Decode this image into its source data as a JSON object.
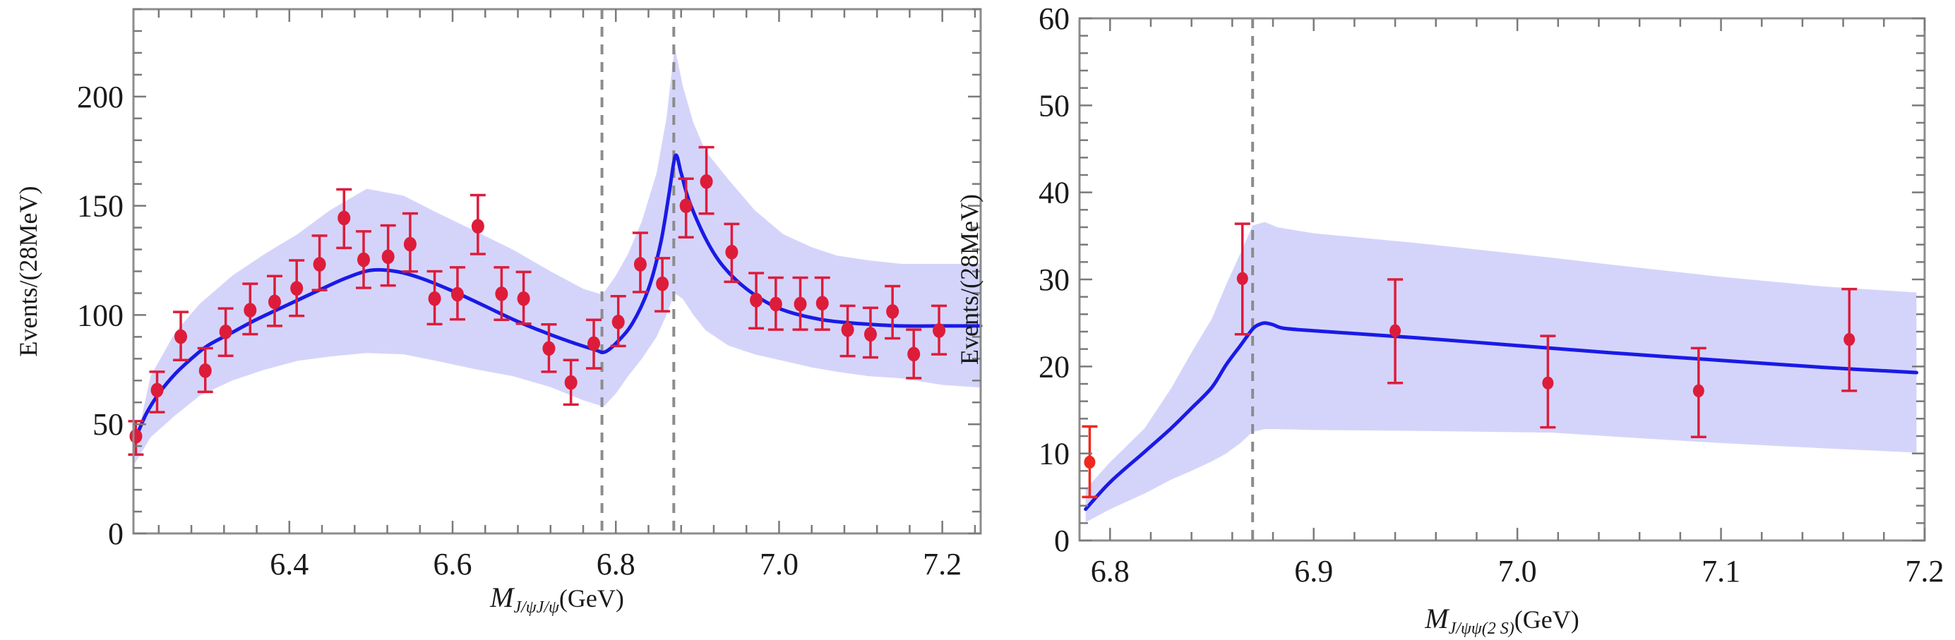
{
  "chart_data": [
    {
      "type": "scatter",
      "panel": "left",
      "title": "",
      "xlabel": {
        "main": "M",
        "sub": "J/ψJ/ψ",
        "unit": "(GeV)"
      },
      "ylabel": "Events/(28MeV)",
      "xlim": [
        6.209,
        7.247
      ],
      "ylim": [
        0,
        240
      ],
      "xticks": [
        6.4,
        6.6,
        6.8,
        7.0,
        7.2
      ],
      "xtick_labels": [
        "6.4",
        "6.6",
        "6.8",
        "7.0",
        "7.2"
      ],
      "xminor_step": 0.04,
      "yticks": [
        0,
        50,
        100,
        150,
        200
      ],
      "ytick_labels": [
        "0",
        "50",
        "100",
        "150",
        "200"
      ],
      "yminor_step": 10,
      "grid": false,
      "vlines": [
        6.783,
        6.871
      ],
      "colors": {
        "data": "#dd1c3a",
        "fit": "#1a1ae6",
        "band": "#d4d4fb",
        "vline": "#8c8c8c",
        "frame": "#8c8c8c"
      },
      "series": [
        {
          "name": "data",
          "kind": "errorbar",
          "points": [
            {
              "x": 6.212,
              "y": 44.5,
              "lo": 36.1,
              "hi": 51.4
            },
            {
              "x": 6.238,
              "y": 65.6,
              "lo": 55.5,
              "hi": 74.0
            },
            {
              "x": 6.267,
              "y": 90.1,
              "lo": 79.4,
              "hi": 101.4
            },
            {
              "x": 6.297,
              "y": 74.5,
              "lo": 64.8,
              "hi": 84.8
            },
            {
              "x": 6.322,
              "y": 92.3,
              "lo": 81.3,
              "hi": 103.0
            },
            {
              "x": 6.352,
              "y": 102.2,
              "lo": 91.2,
              "hi": 114.3
            },
            {
              "x": 6.382,
              "y": 106.0,
              "lo": 95.0,
              "hi": 117.8
            },
            {
              "x": 6.409,
              "y": 112.2,
              "lo": 99.6,
              "hi": 125.0
            },
            {
              "x": 6.437,
              "y": 123.2,
              "lo": 111.4,
              "hi": 136.3
            },
            {
              "x": 6.467,
              "y": 144.4,
              "lo": 130.7,
              "hi": 157.5
            },
            {
              "x": 6.491,
              "y": 125.3,
              "lo": 112.4,
              "hi": 138.3
            },
            {
              "x": 6.521,
              "y": 126.7,
              "lo": 113.5,
              "hi": 141.0
            },
            {
              "x": 6.548,
              "y": 132.4,
              "lo": 119.9,
              "hi": 146.5
            },
            {
              "x": 6.578,
              "y": 107.5,
              "lo": 95.8,
              "hi": 120.0
            },
            {
              "x": 6.606,
              "y": 109.5,
              "lo": 98.0,
              "hi": 121.8
            },
            {
              "x": 6.631,
              "y": 140.6,
              "lo": 127.9,
              "hi": 154.9
            },
            {
              "x": 6.66,
              "y": 109.7,
              "lo": 97.8,
              "hi": 121.8
            },
            {
              "x": 6.687,
              "y": 107.5,
              "lo": 96.0,
              "hi": 119.7
            },
            {
              "x": 6.718,
              "y": 84.7,
              "lo": 74.0,
              "hi": 95.7
            },
            {
              "x": 6.745,
              "y": 69.1,
              "lo": 59.0,
              "hi": 79.4
            },
            {
              "x": 6.773,
              "y": 86.9,
              "lo": 75.6,
              "hi": 97.8
            },
            {
              "x": 6.803,
              "y": 96.8,
              "lo": 85.8,
              "hi": 108.6
            },
            {
              "x": 6.83,
              "y": 123.2,
              "lo": 110.5,
              "hi": 137.6
            },
            {
              "x": 6.857,
              "y": 114.3,
              "lo": 101.7,
              "hi": 126.0
            },
            {
              "x": 6.886,
              "y": 150.0,
              "lo": 135.6,
              "hi": 162.4
            },
            {
              "x": 6.911,
              "y": 161.1,
              "lo": 146.4,
              "hi": 176.8
            },
            {
              "x": 6.942,
              "y": 128.8,
              "lo": 115.2,
              "hi": 141.7
            },
            {
              "x": 6.972,
              "y": 106.8,
              "lo": 93.9,
              "hi": 119.2
            },
            {
              "x": 6.996,
              "y": 105.0,
              "lo": 93.3,
              "hi": 117.1
            },
            {
              "x": 7.026,
              "y": 105.0,
              "lo": 93.3,
              "hi": 117.1
            },
            {
              "x": 7.053,
              "y": 105.4,
              "lo": 93.3,
              "hi": 117.1
            },
            {
              "x": 7.084,
              "y": 93.3,
              "lo": 81.2,
              "hi": 104.2
            },
            {
              "x": 7.112,
              "y": 91.2,
              "lo": 80.6,
              "hi": 103.3
            },
            {
              "x": 7.139,
              "y": 101.6,
              "lo": 89.3,
              "hi": 113.2
            },
            {
              "x": 7.165,
              "y": 82.1,
              "lo": 71.1,
              "hi": 93.3
            },
            {
              "x": 7.196,
              "y": 92.9,
              "lo": 82.0,
              "hi": 104.2
            }
          ]
        },
        {
          "name": "fit",
          "kind": "line",
          "x": [
            6.212,
            6.225,
            6.24,
            6.26,
            6.28,
            6.3,
            6.33,
            6.36,
            6.4,
            6.44,
            6.47,
            6.5,
            6.53,
            6.56,
            6.6,
            6.64,
            6.68,
            6.72,
            6.75,
            6.775,
            6.786,
            6.8,
            6.82,
            6.84,
            6.855,
            6.865,
            6.873,
            6.88,
            6.89,
            6.91,
            6.93,
            6.96,
            7.0,
            7.05,
            7.1,
            7.15,
            7.2,
            7.247
          ],
          "y": [
            44,
            55,
            64,
            73,
            80,
            86,
            92,
            98,
            105,
            112,
            117,
            120.5,
            120,
            117,
            111,
            104,
            97,
            91,
            87,
            84,
            83,
            87,
            96,
            112,
            133,
            155,
            172.9,
            165,
            152,
            135,
            123,
            112,
            103,
            98,
            96,
            95,
            95,
            95
          ]
        },
        {
          "name": "uncertainty-band",
          "kind": "band",
          "x": [
            6.209,
            6.23,
            6.26,
            6.29,
            6.33,
            6.37,
            6.41,
            6.45,
            6.495,
            6.54,
            6.58,
            6.63,
            6.674,
            6.72,
            6.76,
            6.782,
            6.786,
            6.8,
            6.815,
            6.832,
            6.85,
            6.862,
            6.872,
            6.882,
            6.895,
            6.91,
            6.938,
            6.97,
            7.005,
            7.04,
            7.071,
            7.11,
            7.15,
            7.2,
            7.247
          ],
          "upper": [
            36,
            72,
            92,
            105,
            118,
            128,
            137,
            148,
            157.8,
            154.6,
            147,
            138,
            129.9,
            120,
            112,
            109.5,
            110.6,
            118,
            128,
            143,
            165,
            190,
            223,
            205,
            188,
            175,
            162,
            148,
            137,
            131,
            127.2,
            125,
            123.4,
            123.4,
            123.4
          ],
          "lower": [
            31,
            44,
            54,
            63,
            70,
            75,
            79,
            81,
            82.6,
            82,
            79,
            75,
            72,
            67,
            61,
            58.4,
            58.4,
            64,
            72,
            80,
            90,
            100,
            110,
            107.4,
            100,
            93,
            86,
            82,
            79,
            76,
            74,
            72,
            71,
            68,
            66.8
          ]
        }
      ]
    },
    {
      "type": "scatter",
      "panel": "right",
      "title": "",
      "xlabel": {
        "main": "M",
        "sub": "J/ψψ(2 S)",
        "unit": "(GeV)"
      },
      "ylabel": "Events/(28MeV)",
      "xlim": [
        6.785,
        7.2
      ],
      "ylim": [
        0,
        60
      ],
      "xticks": [
        6.8,
        6.9,
        7.0,
        7.1,
        7.2
      ],
      "xtick_labels": [
        "6.8",
        "6.9",
        "7.0",
        "7.1",
        "7.2"
      ],
      "xminor_step": 0.02,
      "yticks": [
        0,
        10,
        20,
        30,
        40,
        50,
        60
      ],
      "ytick_labels": [
        "0",
        "10",
        "20",
        "30",
        "40",
        "50",
        "60"
      ],
      "yminor_step": 2,
      "grid": false,
      "vlines": [
        6.87
      ],
      "colors": {
        "data": "#dd1c3a",
        "data_first": "#f0281e",
        "fit": "#1a1ae6",
        "band": "#d4d4fb",
        "vline": "#8c8c8c",
        "frame": "#8c8c8c"
      },
      "series": [
        {
          "name": "data",
          "kind": "errorbar",
          "points": [
            {
              "x": 6.79,
              "y": 9.0,
              "lo": 5.0,
              "hi": 13.1
            },
            {
              "x": 6.865,
              "y": 30.1,
              "lo": 23.7,
              "hi": 36.4
            },
            {
              "x": 6.94,
              "y": 24.1,
              "lo": 18.1,
              "hi": 30.0
            },
            {
              "x": 7.015,
              "y": 18.1,
              "lo": 13.0,
              "hi": 23.5
            },
            {
              "x": 7.089,
              "y": 17.2,
              "lo": 11.9,
              "hi": 22.1
            },
            {
              "x": 7.163,
              "y": 23.1,
              "lo": 17.2,
              "hi": 28.9
            }
          ]
        },
        {
          "name": "fit",
          "kind": "line",
          "x": [
            6.788,
            6.8,
            6.817,
            6.83,
            6.84,
            6.85,
            6.857,
            6.864,
            6.87,
            6.873,
            6.876,
            6.88,
            6.885,
            6.9,
            6.95,
            7.0,
            7.05,
            7.1,
            7.15,
            7.196
          ],
          "y": [
            3.6,
            6.7,
            10.2,
            12.9,
            15.2,
            17.6,
            20.2,
            22.4,
            24.3,
            24.8,
            25.0,
            24.8,
            24.4,
            24.1,
            23.3,
            22.4,
            21.5,
            20.7,
            19.9,
            19.3
          ]
        },
        {
          "name": "uncertainty-band",
          "kind": "band",
          "x": [
            6.788,
            6.8,
            6.817,
            6.83,
            6.84,
            6.85,
            6.857,
            6.864,
            6.87,
            6.876,
            6.882,
            6.9,
            6.95,
            7.017,
            7.05,
            7.1,
            7.15,
            7.196
          ],
          "upper": [
            5.9,
            9.0,
            12.9,
            17.5,
            21.6,
            25.5,
            29.4,
            33.0,
            36.2,
            36.6,
            36.0,
            35.3,
            34.2,
            32.5,
            31.6,
            30.3,
            29.2,
            28.5
          ],
          "lower": [
            2.1,
            3.6,
            5.4,
            7.0,
            8.0,
            9.1,
            10.0,
            11.2,
            12.5,
            12.8,
            12.8,
            12.7,
            12.6,
            12.4,
            11.9,
            11.2,
            10.6,
            10.1
          ]
        }
      ]
    }
  ]
}
